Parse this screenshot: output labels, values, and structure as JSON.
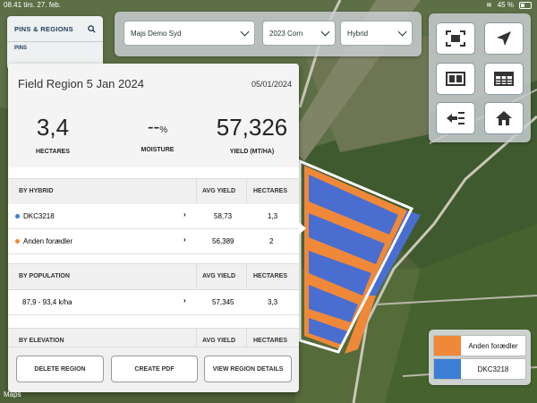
{
  "status_bar": {
    "time": "08.41",
    "date": "tirs. 27. feb.",
    "battery": "45 %"
  },
  "sidebar": {
    "title": "PINS & REGIONS",
    "section": "PINS"
  },
  "filters": {
    "farm": "Majs Demo Syd",
    "season": "2023 Corn",
    "layer": "Hybrid"
  },
  "tools": [
    "focus-icon",
    "navigate-icon",
    "split-view-icon",
    "table-icon",
    "list-back-icon",
    "home-icon"
  ],
  "region": {
    "title": "Field Region 5 Jan 2024",
    "date": "05/01/2024",
    "stats": {
      "hectares": {
        "value": "3,4",
        "label": "HECTARES"
      },
      "moisture": {
        "value": "--",
        "unit": "%",
        "label": "MOISTURE"
      },
      "yield": {
        "value": "57,326",
        "label": "YIELD (MT/HA)"
      }
    }
  },
  "by_hybrid": {
    "header": "BY HYBRID",
    "col_yield": "AVG YIELD",
    "col_hectares": "HECTARES",
    "rows": [
      {
        "name": "DKC3218",
        "color": "#3b7fd4",
        "avg_yield": "58,73",
        "hectares": "1,3"
      },
      {
        "name": "Anden forædler",
        "color": "#f0883a",
        "avg_yield": "56,389",
        "hectares": "2"
      }
    ]
  },
  "by_population": {
    "header": "BY POPULATION",
    "col_yield": "AVG YIELD",
    "col_hectares": "HECTARES",
    "rows": [
      {
        "name": "87,9 - 93,4 k/ha",
        "avg_yield": "57,345",
        "hectares": "3,3"
      }
    ]
  },
  "by_elevation": {
    "header": "BY ELEVATION",
    "col_yield": "AVG YIELD",
    "col_hectares": "HECTARES"
  },
  "actions": {
    "delete": "DELETE REGION",
    "pdf": "CREATE PDF",
    "details": "VIEW REGION DETAILS"
  },
  "legend": [
    {
      "name": "Anden forædler",
      "color": "#f0883a"
    },
    {
      "name": "DKC3218",
      "color": "#3b7fd4"
    }
  ],
  "maps_credit": "Maps",
  "colors": {
    "orange": "#f0883a",
    "blue": "#3b7fd4"
  }
}
